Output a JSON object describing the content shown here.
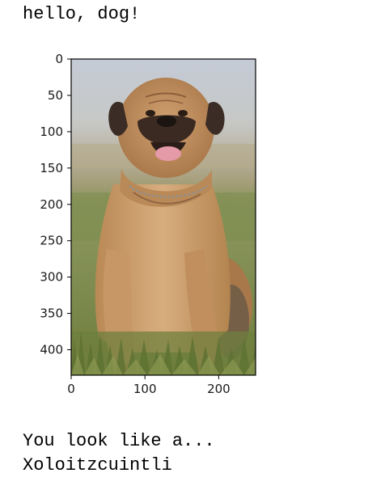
{
  "output": {
    "greeting": "hello, dog!",
    "result_prefix": "You look like a...",
    "predicted_breed": "Xoloitzcuintli"
  },
  "figure": {
    "image_subject": "dog-photo",
    "y_axis": {
      "range": [
        435,
        0
      ],
      "ticks": [
        0,
        50,
        100,
        150,
        200,
        250,
        300,
        350,
        400
      ],
      "tick_labels": [
        "0",
        "50",
        "100",
        "150",
        "200",
        "250",
        "300",
        "350",
        "400"
      ]
    },
    "x_axis": {
      "range": [
        0,
        250
      ],
      "ticks": [
        0,
        100,
        200
      ],
      "tick_labels": [
        "0",
        "100",
        "200"
      ]
    }
  },
  "colors": {
    "text": "#000000",
    "frame": "#000000",
    "sky": "#c9cfd8",
    "field": "#7c8a55",
    "grass": "#6d7d3b",
    "fur": "#cfa070",
    "muzzle": "#3a2a22"
  }
}
